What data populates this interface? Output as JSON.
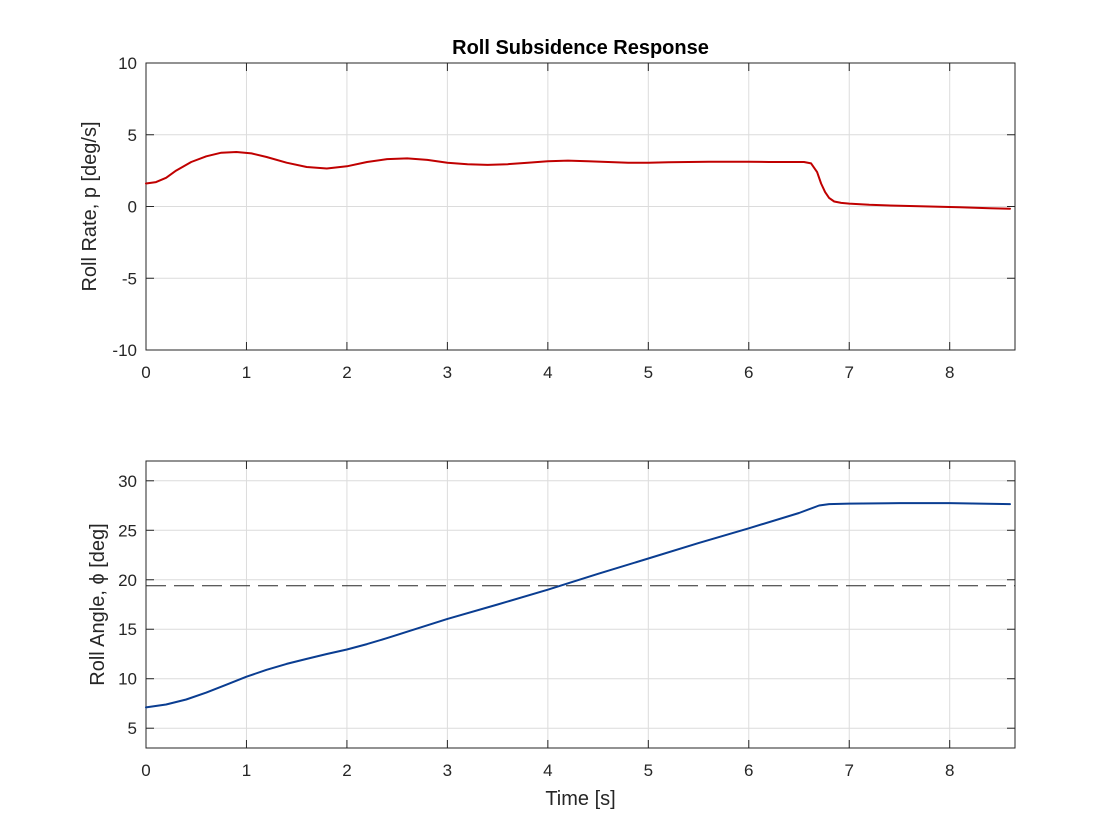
{
  "chart_data": [
    {
      "type": "line",
      "title": "Roll Subsidence Response",
      "xlabel": "",
      "ylabel": "Roll Rate, p [deg/s]",
      "xlim": [
        0,
        8.65
      ],
      "ylim": [
        -10,
        10
      ],
      "xticks": [
        0,
        1,
        2,
        3,
        4,
        5,
        6,
        7,
        8
      ],
      "yticks": [
        -10,
        -5,
        0,
        5,
        10
      ],
      "grid": true,
      "series": [
        {
          "color": "#c00000",
          "x": [
            0,
            0.1,
            0.2,
            0.3,
            0.45,
            0.6,
            0.75,
            0.9,
            1.05,
            1.2,
            1.4,
            1.6,
            1.8,
            2.0,
            2.2,
            2.4,
            2.6,
            2.8,
            3.0,
            3.2,
            3.4,
            3.6,
            3.8,
            4.0,
            4.2,
            4.4,
            4.6,
            4.8,
            5.0,
            5.2,
            5.4,
            5.6,
            5.8,
            6.0,
            6.2,
            6.4,
            6.55,
            6.62,
            6.68,
            6.72,
            6.76,
            6.8,
            6.85,
            6.92,
            7.0,
            7.2,
            7.5,
            7.8,
            8.1,
            8.4,
            8.6
          ],
          "y": [
            1.6,
            1.7,
            2.0,
            2.5,
            3.1,
            3.5,
            3.75,
            3.8,
            3.7,
            3.45,
            3.05,
            2.75,
            2.65,
            2.8,
            3.1,
            3.3,
            3.35,
            3.25,
            3.05,
            2.95,
            2.9,
            2.95,
            3.05,
            3.15,
            3.2,
            3.15,
            3.1,
            3.05,
            3.05,
            3.08,
            3.1,
            3.12,
            3.12,
            3.12,
            3.1,
            3.1,
            3.1,
            3.0,
            2.4,
            1.6,
            1.0,
            0.6,
            0.35,
            0.25,
            0.2,
            0.12,
            0.05,
            0.0,
            -0.05,
            -0.12,
            -0.15
          ]
        }
      ]
    },
    {
      "type": "line",
      "title": "",
      "xlabel": "Time [s]",
      "ylabel": "Roll Angle, ϕ [deg]",
      "xlim": [
        0,
        8.65
      ],
      "ylim": [
        3,
        32
      ],
      "xticks": [
        0,
        1,
        2,
        3,
        4,
        5,
        6,
        7,
        8
      ],
      "yticks": [
        5,
        10,
        15,
        20,
        25,
        30
      ],
      "grid": true,
      "series": [
        {
          "color": "#0a3d91",
          "x": [
            0,
            0.2,
            0.4,
            0.6,
            0.8,
            1.0,
            1.2,
            1.4,
            1.6,
            1.8,
            2.0,
            2.2,
            2.4,
            2.6,
            2.8,
            3.0,
            3.5,
            4.0,
            4.5,
            5.0,
            5.5,
            6.0,
            6.5,
            6.7,
            6.8,
            7.0,
            7.5,
            8.0,
            8.3,
            8.6
          ],
          "y": [
            7.1,
            7.4,
            7.9,
            8.6,
            9.4,
            10.2,
            10.9,
            11.5,
            12.0,
            12.5,
            12.95,
            13.5,
            14.1,
            14.75,
            15.4,
            16.05,
            17.5,
            19.0,
            20.6,
            22.15,
            23.7,
            25.2,
            26.75,
            27.5,
            27.65,
            27.7,
            27.75,
            27.75,
            27.7,
            27.65
          ]
        }
      ],
      "reference_line": {
        "y": 19.4,
        "style": "dashed",
        "color": "#262626"
      }
    }
  ]
}
